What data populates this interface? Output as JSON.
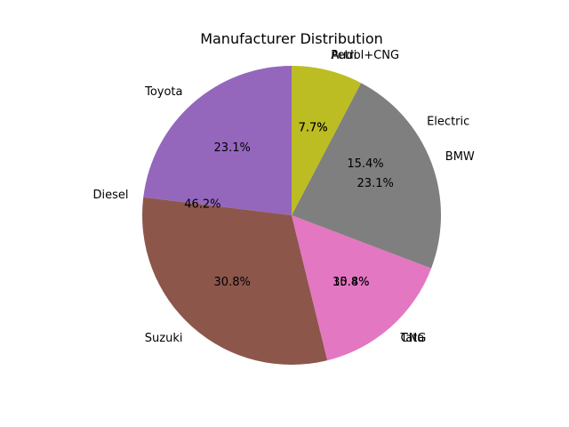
{
  "chart_data": [
    {
      "type": "pie",
      "title": "Manufacturer Distribution",
      "start_angle": 90,
      "direction": "counterclockwise",
      "slices": [
        {
          "label": "Toyota",
          "value": 23.1,
          "pct_label": "23.1%",
          "color": "#9467bd"
        },
        {
          "label": "Suzuki",
          "value": 30.8,
          "pct_label": "30.8%",
          "color": "#8c564b"
        },
        {
          "label": "Tata",
          "value": 15.4,
          "pct_label": "15.4%",
          "color": "#e377c2"
        },
        {
          "label": "BMW",
          "value": 23.1,
          "pct_label": "23.1%",
          "color": "#7f7f7f"
        },
        {
          "label": "Audi",
          "value": 7.7,
          "pct_label": "7.7%",
          "color": "#bcbd22"
        }
      ]
    },
    {
      "type": "pie",
      "start_angle": 90,
      "direction": "counterclockwise",
      "slices": [
        {
          "label": "Diesel",
          "value": 46.2,
          "pct_label": "46.2%"
        },
        {
          "label": "CNG",
          "value": 30.8,
          "pct_label": "30.8%"
        },
        {
          "label": "Electric",
          "value": 15.4,
          "pct_label": "15.4%"
        },
        {
          "label": "Petrol+CNG",
          "value": 7.7,
          "pct_label": "7.7%"
        }
      ]
    }
  ]
}
